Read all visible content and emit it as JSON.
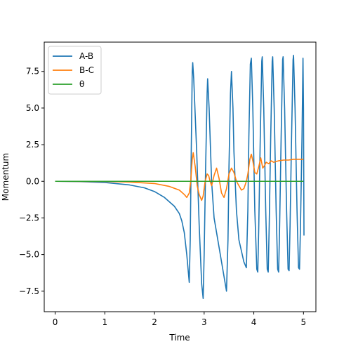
{
  "chart_data": {
    "type": "line",
    "title": "",
    "xlabel": "Time",
    "ylabel": "Momentum",
    "xlim": [
      -0.22,
      5.25
    ],
    "ylim": [
      -8.9,
      9.5
    ],
    "xticks": [
      0,
      1,
      2,
      3,
      4,
      5
    ],
    "yticks": [
      -7.5,
      -5.0,
      -2.5,
      0.0,
      2.5,
      5.0,
      7.5
    ],
    "xtick_labels": [
      "0",
      "1",
      "2",
      "3",
      "4",
      "5"
    ],
    "ytick_labels": [
      "−7.5",
      "−5.0",
      "−2.5",
      "0.0",
      "2.5",
      "5.0",
      "7.5"
    ],
    "grid": false,
    "legend_position": "top-left",
    "series": [
      {
        "name": "A-B",
        "color": "#1f77b4",
        "points": [
          [
            0,
            0
          ],
          [
            0.5,
            -0.02
          ],
          [
            1.0,
            -0.08
          ],
          [
            1.5,
            -0.25
          ],
          [
            1.8,
            -0.45
          ],
          [
            2.0,
            -0.7
          ],
          [
            2.2,
            -1.1
          ],
          [
            2.4,
            -1.7
          ],
          [
            2.5,
            -2.2
          ],
          [
            2.55,
            -2.7
          ],
          [
            2.6,
            -3.5
          ],
          [
            2.65,
            -5.0
          ],
          [
            2.7,
            -6.9
          ],
          [
            2.72,
            -4.0
          ],
          [
            2.74,
            2.0
          ],
          [
            2.76,
            7.5
          ],
          [
            2.77,
            8.1
          ],
          [
            2.79,
            7.0
          ],
          [
            2.85,
            2.0
          ],
          [
            2.9,
            -3.0
          ],
          [
            2.95,
            -7.0
          ],
          [
            2.98,
            -8.0
          ],
          [
            3.0,
            -5.0
          ],
          [
            3.03,
            1.0
          ],
          [
            3.06,
            6.0
          ],
          [
            3.07,
            7.0
          ],
          [
            3.1,
            5.0
          ],
          [
            3.15,
            0.0
          ],
          [
            3.2,
            -2.5
          ],
          [
            3.3,
            -4.5
          ],
          [
            3.4,
            -6.5
          ],
          [
            3.45,
            -7.5
          ],
          [
            3.48,
            -4.0
          ],
          [
            3.5,
            1.0
          ],
          [
            3.53,
            6.0
          ],
          [
            3.55,
            7.5
          ],
          [
            3.58,
            5.0
          ],
          [
            3.6,
            2.0
          ],
          [
            3.65,
            -2.0
          ],
          [
            3.7,
            -4.0
          ],
          [
            3.8,
            -5.5
          ],
          [
            3.85,
            -5.9
          ],
          [
            3.88,
            -2.0
          ],
          [
            3.9,
            3.0
          ],
          [
            3.93,
            8.0
          ],
          [
            3.95,
            8.4
          ],
          [
            3.98,
            5.0
          ],
          [
            4.02,
            -2.0
          ],
          [
            4.06,
            -6.0
          ],
          [
            4.08,
            -6.2
          ],
          [
            4.1,
            -3.0
          ],
          [
            4.13,
            3.0
          ],
          [
            4.16,
            8.2
          ],
          [
            4.17,
            8.5
          ],
          [
            4.2,
            5.0
          ],
          [
            4.24,
            -2.0
          ],
          [
            4.27,
            -6.0
          ],
          [
            4.29,
            -6.2
          ],
          [
            4.31,
            -3.0
          ],
          [
            4.34,
            3.0
          ],
          [
            4.37,
            8.2
          ],
          [
            4.38,
            8.5
          ],
          [
            4.41,
            5.0
          ],
          [
            4.45,
            -2.0
          ],
          [
            4.48,
            -6.0
          ],
          [
            4.5,
            -6.2
          ],
          [
            4.52,
            -3.0
          ],
          [
            4.55,
            3.0
          ],
          [
            4.58,
            8.3
          ],
          [
            4.59,
            8.5
          ],
          [
            4.62,
            5.0
          ],
          [
            4.66,
            -2.0
          ],
          [
            4.69,
            -6.0
          ],
          [
            4.71,
            -6.1
          ],
          [
            4.73,
            -3.0
          ],
          [
            4.76,
            3.0
          ],
          [
            4.79,
            8.3
          ],
          [
            4.8,
            8.6
          ],
          [
            4.83,
            5.0
          ],
          [
            4.87,
            -2.0
          ],
          [
            4.9,
            -5.9
          ],
          [
            4.92,
            -6.0
          ],
          [
            4.94,
            -3.0
          ],
          [
            4.97,
            3.0
          ],
          [
            4.99,
            8.4
          ],
          [
            5.0,
            5.0
          ],
          [
            5.01,
            -3.7
          ]
        ]
      },
      {
        "name": "B-C",
        "color": "#ff7f0e",
        "points": [
          [
            0,
            0
          ],
          [
            1.0,
            -0.01
          ],
          [
            1.5,
            -0.05
          ],
          [
            2.0,
            -0.15
          ],
          [
            2.3,
            -0.35
          ],
          [
            2.5,
            -0.6
          ],
          [
            2.6,
            -0.9
          ],
          [
            2.65,
            -1.1
          ],
          [
            2.7,
            -0.8
          ],
          [
            2.73,
            0.0
          ],
          [
            2.76,
            1.5
          ],
          [
            2.78,
            1.95
          ],
          [
            2.82,
            1.0
          ],
          [
            2.86,
            -0.3
          ],
          [
            2.9,
            -0.9
          ],
          [
            2.95,
            -1.3
          ],
          [
            2.98,
            -1.0
          ],
          [
            3.02,
            0.0
          ],
          [
            3.06,
            0.5
          ],
          [
            3.09,
            0.4
          ],
          [
            3.12,
            0.0
          ],
          [
            3.15,
            -0.3
          ],
          [
            3.2,
            0.4
          ],
          [
            3.25,
            0.9
          ],
          [
            3.3,
            0.2
          ],
          [
            3.35,
            -0.8
          ],
          [
            3.4,
            -1.1
          ],
          [
            3.45,
            -0.5
          ],
          [
            3.5,
            0.5
          ],
          [
            3.55,
            0.9
          ],
          [
            3.6,
            0.6
          ],
          [
            3.65,
            0.0
          ],
          [
            3.7,
            -0.3
          ],
          [
            3.75,
            -0.6
          ],
          [
            3.8,
            -0.5
          ],
          [
            3.85,
            0.0
          ],
          [
            3.88,
            0.5
          ],
          [
            3.92,
            1.5
          ],
          [
            3.95,
            1.85
          ],
          [
            3.98,
            1.4
          ],
          [
            4.02,
            0.6
          ],
          [
            4.06,
            0.5
          ],
          [
            4.1,
            1.0
          ],
          [
            4.14,
            1.6
          ],
          [
            4.18,
            0.9
          ],
          [
            4.22,
            1.1
          ],
          [
            4.25,
            1.3
          ],
          [
            4.3,
            1.2
          ],
          [
            4.35,
            1.4
          ],
          [
            4.4,
            1.3
          ],
          [
            4.5,
            1.4
          ],
          [
            4.6,
            1.45
          ],
          [
            4.7,
            1.45
          ],
          [
            4.8,
            1.5
          ],
          [
            4.9,
            1.5
          ],
          [
            5.0,
            1.5
          ]
        ]
      },
      {
        "name": "θ",
        "color": "#2ca02c",
        "points": [
          [
            0,
            0
          ],
          [
            5.0,
            0
          ]
        ]
      }
    ]
  }
}
